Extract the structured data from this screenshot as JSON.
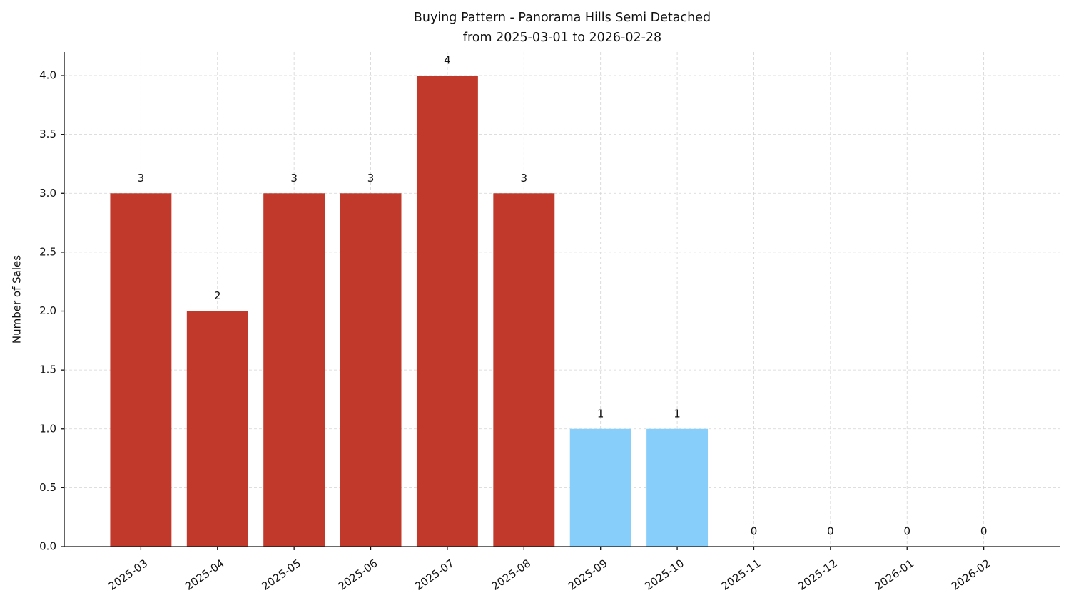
{
  "chart_data": {
    "type": "bar",
    "title": "Buying Pattern - Panorama Hills Semi Detached",
    "subtitle": "from 2025-03-01 to 2026-02-28",
    "y_label": "Number of Sales",
    "categories": [
      "2025-03",
      "2025-04",
      "2025-05",
      "2025-06",
      "2025-07",
      "2025-08",
      "2025-09",
      "2025-10",
      "2025-11",
      "2025-12",
      "2026-01",
      "2026-02"
    ],
    "values": [
      3,
      2,
      3,
      3,
      4,
      3,
      1,
      1,
      0,
      0,
      0,
      0
    ],
    "colors": [
      "#c0392b",
      "#c0392b",
      "#c0392b",
      "#c0392b",
      "#c0392b",
      "#c0392b",
      "#87cefa",
      "#87cefa",
      "#87cefa",
      "#87cefa",
      "#87cefa",
      "#87cefa"
    ],
    "ylim": [
      0,
      4.2
    ],
    "yticks": [
      {
        "value": 0,
        "label": "0.0"
      },
      0.5,
      {
        "value": 1,
        "label": "1.0"
      },
      1.5,
      {
        "value": 2,
        "label": "2.0"
      },
      2.5,
      {
        "value": 3,
        "label": "3.0"
      },
      3.5,
      {
        "value": 4,
        "label": "4.0"
      }
    ],
    "grid": true
  }
}
